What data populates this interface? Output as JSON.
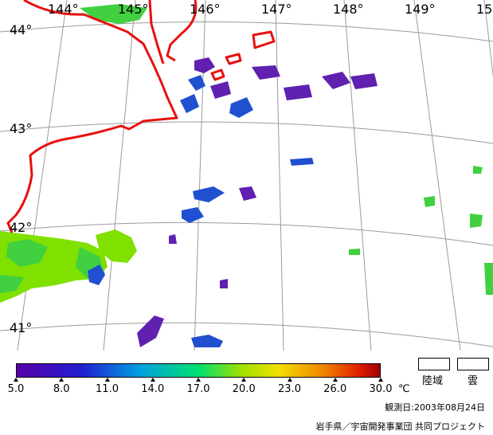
{
  "map": {
    "longitude_labels": [
      "144°",
      "145°",
      "146°",
      "147°",
      "148°",
      "149°",
      "15"
    ],
    "latitude_labels": [
      "44°",
      "43°",
      "42°",
      "41°"
    ]
  },
  "colorbar": {
    "ticks": [
      "5.0",
      "8.0",
      "11.0",
      "14.0",
      "17.0",
      "20.0",
      "23.0",
      "26.0",
      "30.0"
    ],
    "unit": "℃",
    "colors": [
      "#5a00a8",
      "#2020d0",
      "#00a0e0",
      "#00e070",
      "#a0e000",
      "#f0e000",
      "#f08000",
      "#e02000",
      "#a00000"
    ]
  },
  "legend": {
    "land_label": "陸域",
    "cloud_label": "雲"
  },
  "footer": {
    "observation_date": "観測日:2003年08月24日",
    "credit": "岩手県／宇宙開発事業団 共同プロジェクト"
  },
  "colors": {
    "coast": "#e81010",
    "grid": "#9a9a9a",
    "sst_warm": "#80e000",
    "sst_green": "#40e040",
    "sst_cold": "#2050d0",
    "sst_purple": "#6020b0"
  }
}
